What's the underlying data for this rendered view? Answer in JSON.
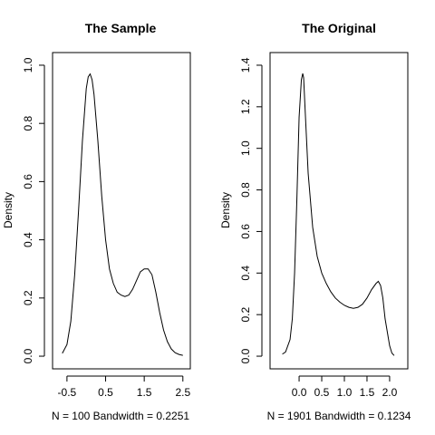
{
  "chart_data": [
    {
      "type": "line",
      "title": "The Sample",
      "xlabel": "N = 100   Bandwidth = 0.2251",
      "ylabel": "Density",
      "xlim": [
        -0.73,
        2.55
      ],
      "ylim": [
        0.0,
        1.0
      ],
      "x_ticks": [
        -0.5,
        0.5,
        1.5,
        2.5
      ],
      "x_tick_labels": [
        "-0.5",
        "0.5",
        "1.5",
        "2.5"
      ],
      "y_ticks": [
        0.0,
        0.2,
        0.4,
        0.6,
        0.8,
        1.0
      ],
      "y_tick_labels": [
        "0.0",
        "0.2",
        "0.4",
        "0.6",
        "0.8",
        "1.0"
      ],
      "grid": false,
      "series": [
        {
          "x": [
            -0.62,
            -0.5,
            -0.4,
            -0.3,
            -0.2,
            -0.1,
            0.0,
            0.05,
            0.1,
            0.15,
            0.2,
            0.3,
            0.4,
            0.5,
            0.6,
            0.7,
            0.8,
            0.9,
            1.0,
            1.1,
            1.2,
            1.3,
            1.4,
            1.5,
            1.6,
            1.7,
            1.8,
            1.9,
            2.0,
            2.1,
            2.2,
            2.3,
            2.4,
            2.5
          ],
          "y": [
            0.01,
            0.04,
            0.12,
            0.28,
            0.5,
            0.74,
            0.92,
            0.96,
            0.97,
            0.95,
            0.9,
            0.74,
            0.55,
            0.4,
            0.3,
            0.25,
            0.22,
            0.21,
            0.205,
            0.21,
            0.23,
            0.26,
            0.29,
            0.3,
            0.3,
            0.28,
            0.22,
            0.15,
            0.09,
            0.05,
            0.025,
            0.012,
            0.006,
            0.003
          ]
        }
      ]
    },
    {
      "type": "line",
      "title": "The Original",
      "xlabel": "N = 1901   Bandwidth = 0.1234",
      "ylabel": "Density",
      "xlim": [
        -0.52,
        2.28
      ],
      "ylim": [
        0.0,
        1.4
      ],
      "x_ticks": [
        0.0,
        0.5,
        1.0,
        1.5,
        2.0
      ],
      "x_tick_labels": [
        "0.0",
        "0.5",
        "1.0",
        "1.5",
        "2.0"
      ],
      "y_ticks": [
        0.0,
        0.2,
        0.4,
        0.6,
        0.8,
        1.0,
        1.2,
        1.4
      ],
      "y_tick_labels": [
        "0.0",
        "0.2",
        "0.4",
        "0.6",
        "0.8",
        "1.0",
        "1.2",
        "1.4"
      ],
      "grid": false,
      "series": [
        {
          "x": [
            -0.37,
            -0.3,
            -0.2,
            -0.15,
            -0.1,
            -0.05,
            0.0,
            0.05,
            0.08,
            0.1,
            0.13,
            0.2,
            0.3,
            0.4,
            0.5,
            0.6,
            0.7,
            0.8,
            0.9,
            1.0,
            1.1,
            1.2,
            1.3,
            1.4,
            1.5,
            1.6,
            1.7,
            1.75,
            1.8,
            1.85,
            1.9,
            2.0,
            2.05,
            2.1
          ],
          "y": [
            0.01,
            0.02,
            0.08,
            0.18,
            0.4,
            0.75,
            1.15,
            1.33,
            1.36,
            1.34,
            1.2,
            0.88,
            0.62,
            0.48,
            0.4,
            0.35,
            0.31,
            0.28,
            0.26,
            0.245,
            0.235,
            0.23,
            0.235,
            0.25,
            0.28,
            0.32,
            0.35,
            0.36,
            0.34,
            0.28,
            0.18,
            0.05,
            0.015,
            0.003
          ]
        }
      ]
    }
  ]
}
